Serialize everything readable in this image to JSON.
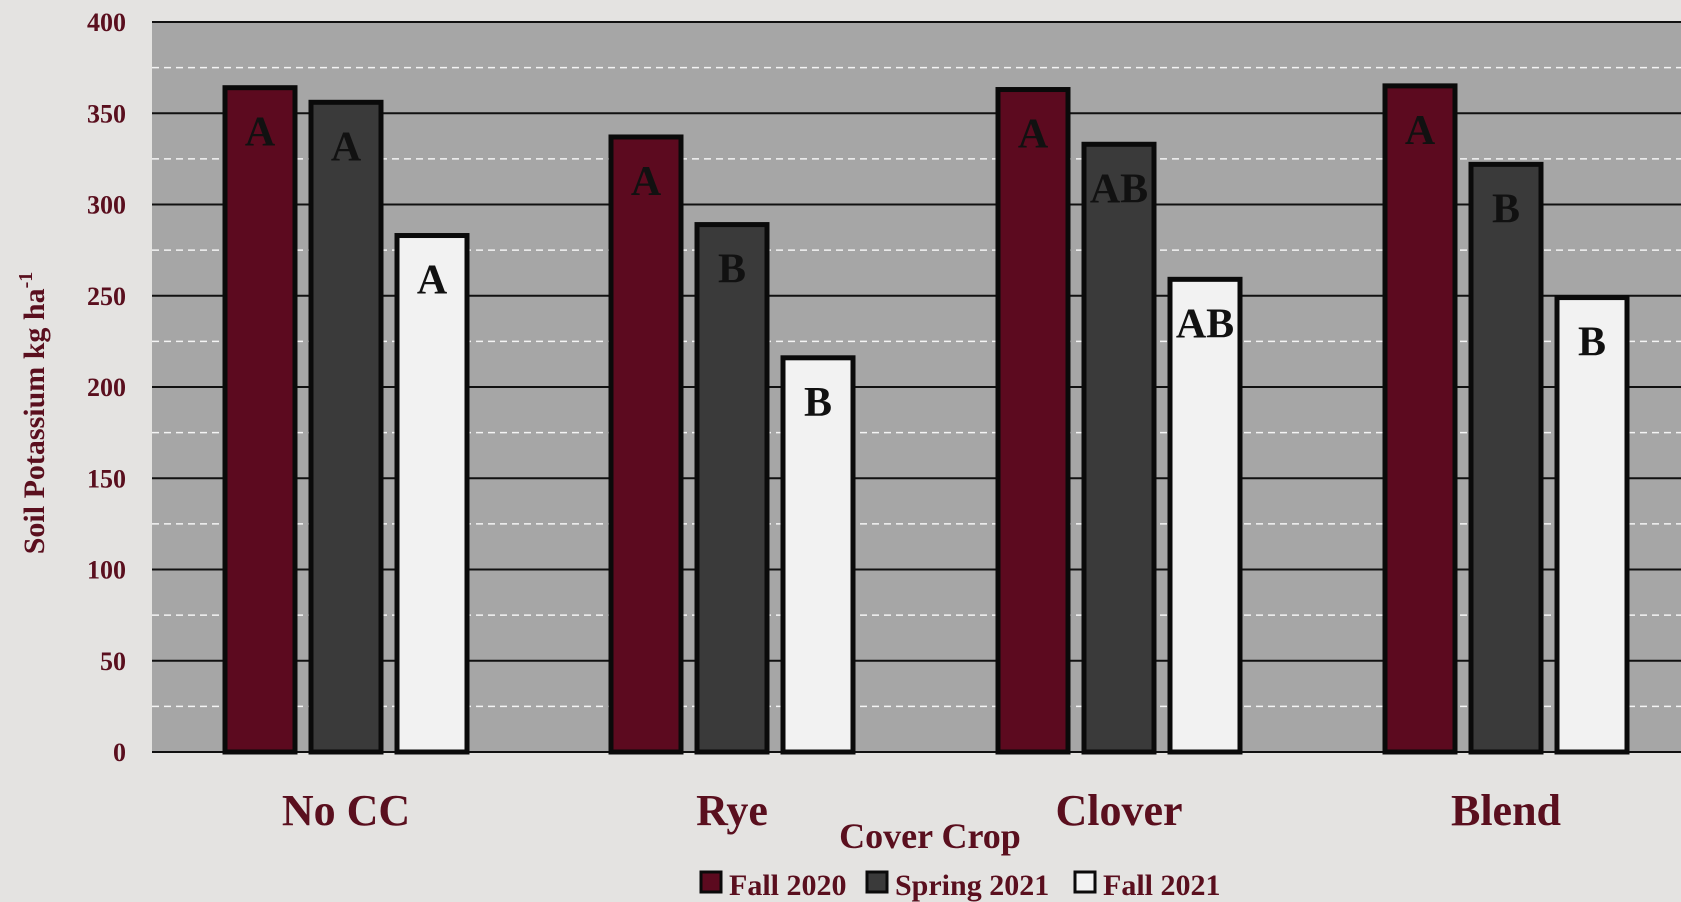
{
  "chart_data": {
    "type": "bar",
    "xlabel": "Cover Crop",
    "ylabel_main": "Soil Potassium kg ha",
    "ylabel_sup": "-1",
    "ylim": [
      0,
      400
    ],
    "yticks": [
      0,
      50,
      100,
      150,
      200,
      250,
      300,
      350,
      400
    ],
    "grid": true,
    "legend_position": "bottom",
    "categories": [
      "No CC",
      "Rye",
      "Clover",
      "Blend"
    ],
    "series": [
      {
        "name": "Fall 2020",
        "color": "#5c0a1f",
        "values": [
          364,
          337,
          363,
          365
        ],
        "letters": [
          "A",
          "A",
          "A",
          "A"
        ]
      },
      {
        "name": "Spring 2021",
        "color": "#3a3a3a",
        "values": [
          356,
          289,
          333,
          322
        ],
        "letters": [
          "A",
          "B",
          "AB",
          "B"
        ]
      },
      {
        "name": "Fall 2021",
        "color": "#f2f2f2",
        "values": [
          283,
          216,
          259,
          249
        ],
        "letters": [
          "A",
          "B",
          "AB",
          "B"
        ]
      }
    ],
    "plot_background": "#a6a6a6",
    "text_color": "#5a0f1e"
  }
}
